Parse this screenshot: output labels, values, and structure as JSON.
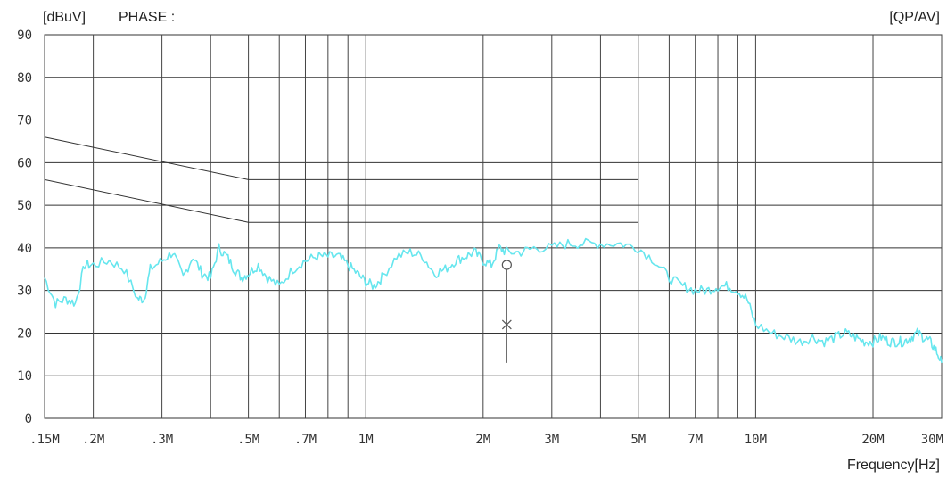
{
  "header": {
    "unit_label": "[dBuV]",
    "phase_label": "PHASE :",
    "detector_label": "[QP/AV]"
  },
  "chart_data": {
    "type": "line",
    "xlabel": "Frequency[Hz]",
    "ylabel": "[dBuV]",
    "x_scale": "log",
    "xlim": [
      150000,
      30000000
    ],
    "ylim": [
      0,
      90
    ],
    "grid": true,
    "y_ticks": [
      0,
      10,
      20,
      30,
      40,
      50,
      60,
      70,
      80,
      90
    ],
    "y_tick_labels": [
      "0",
      "10",
      "20",
      "30",
      "40",
      "50",
      "60",
      "70",
      "80",
      "90"
    ],
    "x_ticks": [
      150000,
      200000,
      300000,
      500000,
      700000,
      1000000,
      2000000,
      3000000,
      5000000,
      7000000,
      10000000,
      20000000,
      30000000
    ],
    "x_tick_labels": [
      ".15M",
      ".2M",
      ".3M",
      ".5M",
      ".7M",
      "1M",
      "2M",
      "3M",
      "5M",
      "7M",
      "10M",
      "20M",
      "30M"
    ],
    "x_grid_lines": [
      150000,
      200000,
      300000,
      400000,
      500000,
      600000,
      700000,
      800000,
      900000,
      1000000,
      2000000,
      3000000,
      4000000,
      5000000,
      6000000,
      7000000,
      8000000,
      9000000,
      10000000,
      20000000,
      30000000
    ],
    "series": [
      {
        "color": "#66e6ee",
        "x": [
          150000,
          160000,
          170000,
          180000,
          190000,
          200000,
          220000,
          240000,
          260000,
          270000,
          280000,
          300000,
          320000,
          340000,
          360000,
          380000,
          400000,
          420000,
          440000,
          460000,
          480000,
          500000,
          530000,
          560000,
          600000,
          650000,
          700000,
          750000,
          800000,
          850000,
          900000,
          950000,
          1000000,
          1050000,
          1100000,
          1200000,
          1300000,
          1400000,
          1500000,
          1600000,
          1700000,
          1800000,
          1900000,
          2000000,
          2100000,
          2200000,
          2300000,
          2500000,
          2700000,
          3000000,
          3300000,
          3600000,
          4000000,
          4500000,
          5000000,
          5500000,
          6000000,
          6500000,
          7000000,
          7500000,
          8000000,
          8500000,
          9000000,
          9500000,
          10000000,
          11000000,
          12000000,
          13000000,
          14000000,
          15000000,
          16000000,
          17000000,
          18000000,
          19000000,
          20000000,
          21000000,
          22000000,
          23000000,
          24000000,
          25000000,
          26000000,
          27000000,
          28000000,
          29000000,
          30000000
        ],
        "y": [
          33,
          27,
          28,
          27,
          36,
          36,
          37,
          35,
          28,
          28,
          35,
          37,
          39,
          33,
          38,
          34,
          33,
          40,
          38,
          35,
          33,
          34,
          36,
          33,
          31,
          35,
          37,
          38,
          38,
          38,
          36,
          34,
          32,
          31,
          33,
          38,
          39,
          38,
          34,
          35,
          37,
          38,
          39,
          37,
          36,
          40,
          39,
          39,
          40,
          40,
          41,
          41,
          41,
          41,
          40,
          37,
          33,
          31,
          30,
          30,
          31,
          31,
          30,
          28,
          22,
          20,
          19,
          18,
          19,
          18,
          19,
          20,
          19,
          18,
          18,
          19,
          18,
          18,
          18,
          19,
          20,
          19,
          18,
          16,
          13
        ]
      }
    ],
    "limit_lines": [
      {
        "x": [
          150000,
          500000,
          5000000
        ],
        "y": [
          66,
          56,
          56
        ]
      },
      {
        "x": [
          150000,
          500000,
          5000000
        ],
        "y": [
          56,
          46,
          46
        ]
      }
    ],
    "markers": [
      {
        "frequency": 2300000,
        "symbol": "o",
        "value": 36
      },
      {
        "frequency": 2300000,
        "symbol": "x",
        "value": 22
      }
    ]
  }
}
